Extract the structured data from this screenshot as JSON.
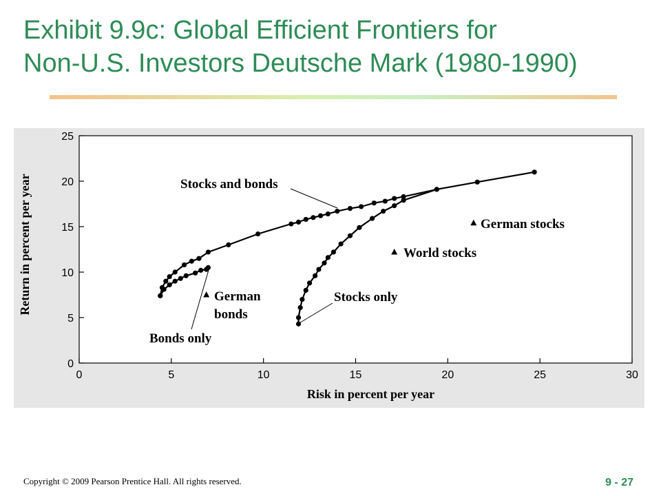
{
  "slide": {
    "title_line1": "Exhibit 9.9c: Global Efficient Frontiers for",
    "title_line2": "Non-U.S. Investors Deutsche Mark (1980-1990)",
    "copyright": "Copyright © 2009 Pearson Prentice Hall. All rights reserved.",
    "page_number": "9 - 27"
  },
  "colors": {
    "title": "#2e8b57",
    "plot_background": "#e6e6e6",
    "ink": "#000000"
  },
  "chart_data": {
    "type": "line",
    "xlabel": "Risk in percent per year",
    "ylabel": "Return in percent per year",
    "xlim": [
      0,
      30
    ],
    "ylim": [
      0,
      25
    ],
    "xticks": [
      0,
      5,
      10,
      15,
      20,
      25,
      30
    ],
    "yticks": [
      0,
      5,
      10,
      15,
      20,
      25
    ],
    "grid": false,
    "series": [
      {
        "name": "Stocks and bonds",
        "points": [
          [
            4.4,
            7.4
          ],
          [
            4.5,
            8.3
          ],
          [
            4.7,
            9.0
          ],
          [
            4.9,
            9.5
          ],
          [
            5.2,
            10.0
          ],
          [
            5.7,
            10.8
          ],
          [
            6.1,
            11.2
          ],
          [
            6.5,
            11.5
          ],
          [
            7.0,
            12.2
          ],
          [
            8.1,
            13.0
          ],
          [
            9.7,
            14.2
          ],
          [
            11.5,
            15.3
          ],
          [
            11.9,
            15.5
          ],
          [
            12.3,
            15.8
          ],
          [
            12.7,
            16.0
          ],
          [
            13.1,
            16.2
          ],
          [
            13.5,
            16.4
          ],
          [
            14.0,
            16.7
          ],
          [
            14.7,
            17.0
          ],
          [
            15.3,
            17.2
          ],
          [
            16.0,
            17.6
          ],
          [
            16.6,
            17.8
          ],
          [
            17.1,
            18.1
          ],
          [
            17.6,
            18.3
          ],
          [
            19.4,
            19.1
          ],
          [
            21.6,
            19.9
          ],
          [
            24.7,
            21.0
          ]
        ]
      },
      {
        "name": "Stocks only",
        "points": [
          [
            11.9,
            4.3
          ],
          [
            11.9,
            5.0
          ],
          [
            12.0,
            6.1
          ],
          [
            12.1,
            7.0
          ],
          [
            12.3,
            8.0
          ],
          [
            12.5,
            8.8
          ],
          [
            12.8,
            9.6
          ],
          [
            13.0,
            10.3
          ],
          [
            13.3,
            11.0
          ],
          [
            13.5,
            11.6
          ],
          [
            13.8,
            12.2
          ],
          [
            14.2,
            13.1
          ],
          [
            14.7,
            14.0
          ],
          [
            15.2,
            14.9
          ],
          [
            15.9,
            15.9
          ],
          [
            16.5,
            16.7
          ],
          [
            17.1,
            17.3
          ],
          [
            17.6,
            17.9
          ],
          [
            19.4,
            19.1
          ]
        ]
      },
      {
        "name": "Bonds only",
        "points": [
          [
            4.4,
            7.4
          ],
          [
            4.6,
            8.1
          ],
          [
            4.9,
            8.6
          ],
          [
            5.2,
            9.0
          ],
          [
            5.5,
            9.3
          ],
          [
            5.8,
            9.6
          ],
          [
            6.3,
            9.9
          ],
          [
            6.6,
            10.2
          ],
          [
            6.9,
            10.3
          ],
          [
            7.0,
            10.5
          ]
        ]
      }
    ],
    "markers": [
      {
        "label": "German stocks",
        "x": 21.4,
        "y": 15.4
      },
      {
        "label": "World stocks",
        "x": 17.1,
        "y": 12.2
      },
      {
        "label": "German bonds",
        "x": 6.9,
        "y": 7.5
      }
    ],
    "annotations": [
      {
        "text": "Stocks and bonds",
        "target": [
          14.0,
          16.7
        ]
      },
      {
        "text": "Stocks only",
        "target": [
          11.9,
          4.3
        ]
      },
      {
        "text": "Bonds only",
        "target": [
          6.3,
          9.9
        ]
      },
      {
        "text": "German stocks"
      },
      {
        "text": "World stocks"
      },
      {
        "text": "German",
        "text2": "bonds"
      }
    ]
  }
}
